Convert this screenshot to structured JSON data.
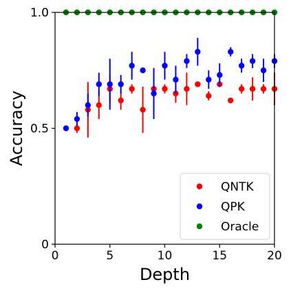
{
  "chart_data": {
    "type": "scatter",
    "title": "",
    "xlabel": "Depth",
    "ylabel": "Accuracy",
    "xlim": [
      0,
      20
    ],
    "ylim": [
      0,
      1
    ],
    "xticks": [
      "0",
      "5",
      "10",
      "15",
      "20"
    ],
    "yticks": [
      "0",
      "0.5",
      "1.0"
    ],
    "legend_position": "bottom-right",
    "grid": false,
    "error_bars": true,
    "series": [
      {
        "name": "QNTK",
        "color": "#ff0000",
        "x": [
          2,
          3,
          4,
          5,
          6,
          7,
          8,
          9,
          10,
          11,
          12,
          13,
          14,
          15,
          16,
          17,
          18,
          19,
          20
        ],
        "y": [
          0.5,
          0.58,
          0.6,
          0.67,
          0.62,
          0.67,
          0.58,
          0.67,
          0.67,
          0.65,
          0.67,
          0.69,
          0.64,
          0.69,
          0.62,
          0.67,
          0.67,
          0.67,
          0.67
        ],
        "err": [
          0.02,
          0.12,
          0.06,
          0.06,
          0.04,
          0.02,
          0.1,
          0.03,
          0.02,
          0.04,
          0.07,
          0.0,
          0.02,
          0.0,
          0.0,
          0.02,
          0.05,
          0.02,
          0.07
        ]
      },
      {
        "name": "QPK",
        "color": "#0000ff",
        "x": [
          1,
          2,
          3,
          4,
          5,
          6,
          7,
          8,
          9,
          10,
          11,
          12,
          13,
          14,
          15,
          16,
          17,
          18,
          19,
          20
        ],
        "y": [
          0.5,
          0.54,
          0.6,
          0.69,
          0.69,
          0.69,
          0.77,
          0.75,
          0.65,
          0.77,
          0.71,
          0.79,
          0.83,
          0.71,
          0.73,
          0.83,
          0.77,
          0.79,
          0.75,
          0.79
        ],
        "err": [
          0.0,
          0.03,
          0.05,
          0.05,
          0.11,
          0.04,
          0.06,
          0.0,
          0.11,
          0.06,
          0.06,
          0.03,
          0.06,
          0.04,
          0.05,
          0.02,
          0.03,
          0.03,
          0.05,
          0.03
        ]
      },
      {
        "name": "Oracle",
        "color": "#008000",
        "x": [
          1,
          2,
          3,
          4,
          5,
          6,
          7,
          8,
          9,
          10,
          11,
          12,
          13,
          14,
          15,
          16,
          17,
          18,
          19,
          20
        ],
        "y": [
          1,
          1,
          1,
          1,
          1,
          1,
          1,
          1,
          1,
          1,
          1,
          1,
          1,
          1,
          1,
          1,
          1,
          1,
          1,
          1
        ],
        "err": [
          0,
          0,
          0,
          0,
          0,
          0,
          0,
          0,
          0,
          0,
          0,
          0,
          0,
          0,
          0,
          0,
          0,
          0,
          0,
          0
        ]
      }
    ]
  }
}
